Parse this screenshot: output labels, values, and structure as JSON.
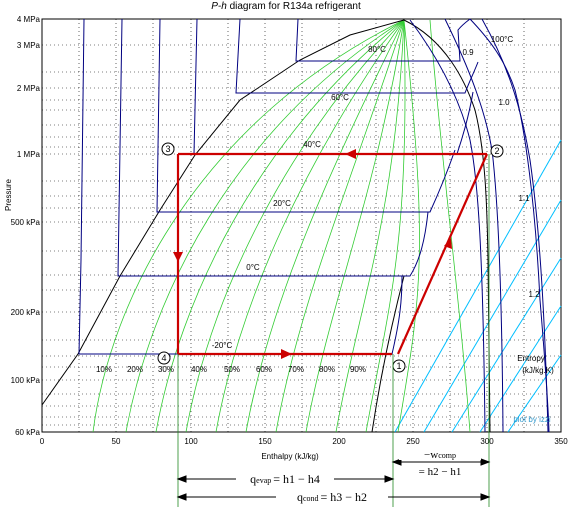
{
  "title": {
    "italic": "P-h",
    "rest": " diagram for R134a refrigerant"
  },
  "axes": {
    "xlabel": "Enthalpy (kJ/kg)",
    "ylabel": "Pressure",
    "x_ticks": [
      "0",
      "50",
      "100",
      "150",
      "200",
      "250",
      "300",
      "350"
    ],
    "y_ticks": [
      "4 MPa",
      "3 MPa",
      "2 MPa",
      "1 MPa",
      "500 kPa",
      "200 kPa",
      "100 kPa",
      "60 kPa"
    ]
  },
  "isotherms": [
    "80°C",
    "60°C",
    "40°C",
    "20°C",
    "0°C",
    "-20°C",
    "100°C"
  ],
  "quality_labels": [
    "10%",
    "20%",
    "30%",
    "40%",
    "50%",
    "60%",
    "70%",
    "80%",
    "90%",
    "0.9"
  ],
  "entropy": {
    "title_line1": "Entropy",
    "title_line2": "(kJ/kg.K)",
    "values": [
      "1.0",
      "1.1",
      "1.2"
    ]
  },
  "points": [
    "1",
    "2",
    "3",
    "4"
  ],
  "credit": "plot by izzi",
  "annotations": {
    "wcomp_top": "−w",
    "wcomp_sub": "comp",
    "wcomp_eq": "= h2 − h1",
    "qevap": "q",
    "qevap_sub": "evap",
    "qevap_eq": "= h1 − h4",
    "qcond": "q",
    "qcond_sub": "cond",
    "qcond_eq": "= h3 − h2"
  },
  "colors": {
    "grid": "#000000",
    "isotherm": "#000080",
    "quality": "#33cc33",
    "entropy": "#00bfff",
    "cycle": "#cc0000",
    "dome": "#000000",
    "guide": "#228822"
  }
}
